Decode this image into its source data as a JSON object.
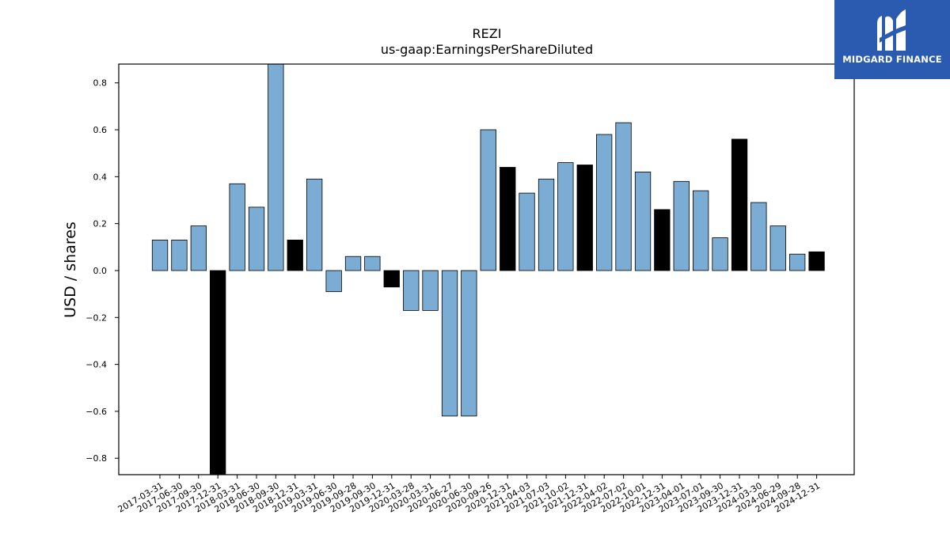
{
  "logo": {
    "text": "MIDGARD FINANCE",
    "icon": "midgard-m-logo-icon",
    "bg_color": "#2b5bb0"
  },
  "chart_data": {
    "type": "bar",
    "title": "REZI",
    "subtitle": "us-gaap:EarningsPerShareDiluted",
    "xlabel": "",
    "ylabel": "USD / shares",
    "ylim": [
      -0.87,
      0.88
    ],
    "yticks": [
      -0.8,
      -0.6,
      -0.4,
      -0.2,
      0.0,
      0.2,
      0.4,
      0.6,
      0.8
    ],
    "ytick_labels": [
      "−0.8",
      "−0.6",
      "−0.4",
      "−0.2",
      "0.0",
      "0.2",
      "0.4",
      "0.6",
      "0.8"
    ],
    "grid": false,
    "colors": {
      "quarterly": "#7bacd4",
      "annual": "#000000",
      "edge": "#000000"
    },
    "categories": [
      "2017-03-31",
      "2017-06-30",
      "2017-09-30",
      "2017-12-31",
      "2018-03-31",
      "2018-06-30",
      "2018-09-30",
      "2018-12-31",
      "2019-03-31",
      "2019-06-30",
      "2019-09-28",
      "2019-09-30",
      "2019-12-31",
      "2020-03-28",
      "2020-03-31",
      "2020-06-27",
      "2020-06-30",
      "2020-09-26",
      "2020-12-31",
      "2021-04-03",
      "2021-07-03",
      "2021-10-02",
      "2021-12-31",
      "2022-04-02",
      "2022-07-02",
      "2022-10-01",
      "2022-12-31",
      "2023-04-01",
      "2023-07-01",
      "2023-09-30",
      "2023-12-31",
      "2024-03-30",
      "2024-06-29",
      "2024-09-28",
      "2024-12-31"
    ],
    "values": [
      0.13,
      0.13,
      0.19,
      -0.95,
      0.37,
      0.27,
      0.92,
      0.13,
      0.39,
      -0.09,
      0.06,
      0.06,
      -0.07,
      -0.17,
      -0.17,
      -0.62,
      -0.62,
      0.6,
      0.44,
      0.33,
      0.39,
      0.46,
      0.45,
      0.58,
      0.63,
      0.42,
      0.26,
      0.38,
      0.34,
      0.14,
      0.56,
      0.29,
      0.19,
      0.07,
      0.08
    ],
    "annual_flags": [
      false,
      false,
      false,
      true,
      false,
      false,
      false,
      true,
      false,
      false,
      false,
      false,
      true,
      false,
      false,
      false,
      false,
      false,
      true,
      false,
      false,
      false,
      true,
      false,
      false,
      false,
      true,
      false,
      false,
      false,
      true,
      false,
      false,
      false,
      true
    ]
  }
}
